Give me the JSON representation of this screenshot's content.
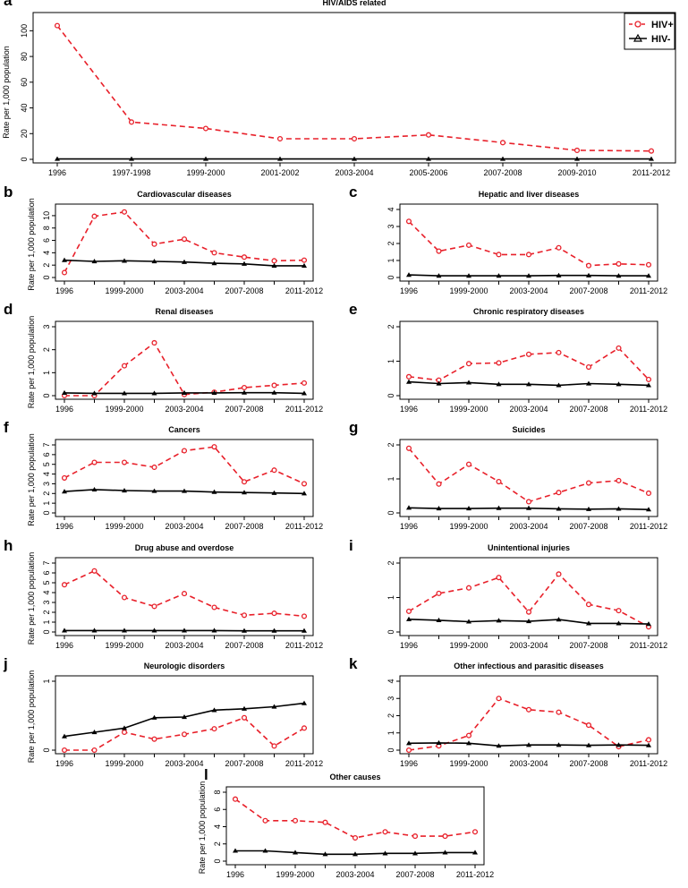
{
  "figure": {
    "ylabel_common": "Rate per 1,000 population",
    "legend": [
      {
        "name": "HIV+",
        "color": "#e8202a",
        "dash": "6,4",
        "marker": "circle"
      },
      {
        "name": "HIV-",
        "color": "#000000",
        "dash": "",
        "marker": "triangle"
      }
    ]
  },
  "chart_data": [
    {
      "panel": "a",
      "type": "line",
      "title": "HIV/AIDS related",
      "ylabel": "Rate per 1,000 population",
      "ylim": [
        0,
        110
      ],
      "yticks": [
        0,
        20,
        40,
        60,
        80,
        100
      ],
      "x": [
        0,
        1,
        2,
        3,
        4,
        5,
        6,
        7,
        8
      ],
      "xtick_labels": [
        "1996",
        "1997-1998",
        "1999-2000",
        "2001-2002",
        "2003-2004",
        "2005-2006",
        "2007-2008",
        "2009-2010",
        "2011-2012"
      ],
      "legend": "top-right",
      "series": [
        {
          "name": "HIV+",
          "values": [
            104,
            29,
            24,
            16,
            16,
            19,
            13,
            7,
            6.5
          ]
        },
        {
          "name": "HIV-",
          "values": [
            0.3,
            0.3,
            0.3,
            0.3,
            0.3,
            0.3,
            0.3,
            0.3,
            0.3
          ]
        }
      ]
    },
    {
      "panel": "b",
      "type": "line",
      "title": "Cardiovascular diseases",
      "ylabel": "Rate per 1,000 population",
      "ylim": [
        0,
        11
      ],
      "yticks": [
        0,
        2,
        4,
        6,
        8,
        10
      ],
      "x": [
        0,
        1,
        2,
        3,
        4,
        5,
        6,
        7,
        8
      ],
      "xtick_labels": [
        "1996",
        "",
        "1999-2000",
        "",
        "2003-2004",
        "",
        "2007-2008",
        "",
        "2011-2012"
      ],
      "series": [
        {
          "name": "HIV+",
          "values": [
            0.8,
            9.9,
            10.6,
            5.4,
            6.2,
            4.0,
            3.3,
            2.7,
            2.8
          ]
        },
        {
          "name": "HIV-",
          "values": [
            2.8,
            2.6,
            2.7,
            2.6,
            2.5,
            2.3,
            2.2,
            1.9,
            1.9
          ]
        }
      ]
    },
    {
      "panel": "c",
      "type": "line",
      "title": "Hepatic and liver diseases",
      "ylabel": "",
      "ylim": [
        0,
        4
      ],
      "yticks": [
        0,
        1,
        2,
        3,
        4
      ],
      "x": [
        0,
        1,
        2,
        3,
        4,
        5,
        6,
        7,
        8
      ],
      "xtick_labels": [
        "1996",
        "",
        "1999-2000",
        "",
        "2003-2004",
        "",
        "2007-2008",
        "",
        "2011-2012"
      ],
      "series": [
        {
          "name": "HIV+",
          "values": [
            3.3,
            1.55,
            1.9,
            1.35,
            1.35,
            1.75,
            0.7,
            0.8,
            0.75
          ]
        },
        {
          "name": "HIV-",
          "values": [
            0.15,
            0.1,
            0.1,
            0.1,
            0.1,
            0.12,
            0.12,
            0.1,
            0.1
          ]
        }
      ]
    },
    {
      "panel": "d",
      "type": "line",
      "title": "Renal diseases",
      "ylabel": "Rate per 1,000 population",
      "ylim": [
        0,
        3
      ],
      "yticks": [
        0,
        1,
        2,
        3
      ],
      "x": [
        0,
        1,
        2,
        3,
        4,
        5,
        6,
        7,
        8
      ],
      "xtick_labels": [
        "1996",
        "",
        "1999-2000",
        "",
        "2003-2004",
        "",
        "2007-2008",
        "",
        "2011-2012"
      ],
      "series": [
        {
          "name": "HIV+",
          "values": [
            0.0,
            0.0,
            1.3,
            2.3,
            0.05,
            0.15,
            0.35,
            0.45,
            0.55
          ]
        },
        {
          "name": "HIV-",
          "values": [
            0.12,
            0.1,
            0.1,
            0.1,
            0.12,
            0.12,
            0.13,
            0.13,
            0.1
          ]
        }
      ]
    },
    {
      "panel": "e",
      "type": "line",
      "title": "Chronic respiratory diseases",
      "ylabel": "",
      "ylim": [
        0,
        2
      ],
      "yticks": [
        0,
        1,
        2
      ],
      "x": [
        0,
        1,
        2,
        3,
        4,
        5,
        6,
        7,
        8
      ],
      "xtick_labels": [
        "1996",
        "",
        "1999-2000",
        "",
        "2003-2004",
        "",
        "2007-2008",
        "",
        "2011-2012"
      ],
      "series": [
        {
          "name": "HIV+",
          "values": [
            0.55,
            0.45,
            0.93,
            0.95,
            1.2,
            1.25,
            0.83,
            1.38,
            0.47
          ]
        },
        {
          "name": "HIV-",
          "values": [
            0.4,
            0.35,
            0.38,
            0.33,
            0.33,
            0.3,
            0.35,
            0.33,
            0.3
          ]
        }
      ]
    },
    {
      "panel": "f",
      "type": "line",
      "title": "Cancers",
      "ylabel": "Rate per 1,000 population",
      "ylim": [
        0,
        7
      ],
      "yticks": [
        0,
        1,
        2,
        3,
        4,
        5,
        6,
        7
      ],
      "x": [
        0,
        1,
        2,
        3,
        4,
        5,
        6,
        7,
        8
      ],
      "xtick_labels": [
        "1996",
        "",
        "1999-2000",
        "",
        "2003-2004",
        "",
        "2007-2008",
        "",
        "2011-2012"
      ],
      "series": [
        {
          "name": "HIV+",
          "values": [
            3.6,
            5.2,
            5.2,
            4.7,
            6.4,
            6.8,
            3.2,
            4.4,
            3.0
          ]
        },
        {
          "name": "HIV-",
          "values": [
            2.2,
            2.4,
            2.3,
            2.25,
            2.25,
            2.15,
            2.1,
            2.05,
            2.0
          ]
        }
      ]
    },
    {
      "panel": "g",
      "type": "line",
      "title": "Suicides",
      "ylabel": "",
      "ylim": [
        0,
        2
      ],
      "yticks": [
        0,
        1,
        2
      ],
      "x": [
        0,
        1,
        2,
        3,
        4,
        5,
        6,
        7,
        8
      ],
      "xtick_labels": [
        "1996",
        "",
        "1999-2000",
        "",
        "2003-2004",
        "",
        "2007-2008",
        "",
        "2011-2012"
      ],
      "series": [
        {
          "name": "HIV+",
          "values": [
            1.9,
            0.85,
            1.43,
            0.92,
            0.33,
            0.6,
            0.88,
            0.95,
            0.58
          ]
        },
        {
          "name": "HIV-",
          "values": [
            0.15,
            0.13,
            0.13,
            0.14,
            0.14,
            0.12,
            0.11,
            0.12,
            0.1
          ]
        }
      ]
    },
    {
      "panel": "h",
      "type": "line",
      "title": "Drug abuse and overdose",
      "ylabel": "Rate per 1,000 population",
      "ylim": [
        0,
        7
      ],
      "yticks": [
        0,
        1,
        2,
        3,
        4,
        5,
        6,
        7
      ],
      "x": [
        0,
        1,
        2,
        3,
        4,
        5,
        6,
        7,
        8
      ],
      "xtick_labels": [
        "1996",
        "",
        "1999-2000",
        "",
        "2003-2004",
        "",
        "2007-2008",
        "",
        "2011-2012"
      ],
      "series": [
        {
          "name": "HIV+",
          "values": [
            4.8,
            6.2,
            3.5,
            2.6,
            3.9,
            2.5,
            1.7,
            1.9,
            1.6
          ]
        },
        {
          "name": "HIV-",
          "values": [
            0.15,
            0.15,
            0.15,
            0.15,
            0.15,
            0.15,
            0.12,
            0.12,
            0.12
          ]
        }
      ]
    },
    {
      "panel": "i",
      "type": "line",
      "title": "Unintentional injuries",
      "ylabel": "",
      "ylim": [
        0,
        2
      ],
      "yticks": [
        0,
        1,
        2
      ],
      "x": [
        0,
        1,
        2,
        3,
        4,
        5,
        6,
        7,
        8
      ],
      "xtick_labels": [
        "1996",
        "",
        "1999-2000",
        "",
        "2003-2004",
        "",
        "2007-2008",
        "",
        "2011-2012"
      ],
      "series": [
        {
          "name": "HIV+",
          "values": [
            0.6,
            1.12,
            1.28,
            1.58,
            0.58,
            1.68,
            0.8,
            0.62,
            0.15
          ]
        },
        {
          "name": "HIV-",
          "values": [
            0.37,
            0.34,
            0.3,
            0.33,
            0.31,
            0.36,
            0.25,
            0.25,
            0.23
          ]
        }
      ]
    },
    {
      "panel": "j",
      "type": "line",
      "title": "Neurologic disorders",
      "ylabel": "Rate per 1,000 population",
      "ylim": [
        0,
        1
      ],
      "yticks": [
        0,
        1
      ],
      "x": [
        0,
        1,
        2,
        3,
        4,
        5,
        6,
        7,
        8
      ],
      "xtick_labels": [
        "1996",
        "",
        "1999-2000",
        "",
        "2003-2004",
        "",
        "2007-2008",
        "",
        "2011-2012"
      ],
      "series": [
        {
          "name": "HIV+",
          "values": [
            0.0,
            0.0,
            0.26,
            0.16,
            0.23,
            0.31,
            0.47,
            0.06,
            0.32
          ]
        },
        {
          "name": "HIV-",
          "values": [
            0.2,
            0.26,
            0.32,
            0.47,
            0.48,
            0.58,
            0.6,
            0.63,
            0.68
          ]
        }
      ]
    },
    {
      "panel": "k",
      "type": "line",
      "title": "Other infectious and parasitic diseases",
      "ylabel": "",
      "ylim": [
        0,
        4
      ],
      "yticks": [
        0,
        1,
        2,
        3,
        4
      ],
      "x": [
        0,
        1,
        2,
        3,
        4,
        5,
        6,
        7,
        8
      ],
      "xtick_labels": [
        "1996",
        "",
        "1999-2000",
        "",
        "2003-2004",
        "",
        "2007-2008",
        "",
        "2011-2012"
      ],
      "series": [
        {
          "name": "HIV+",
          "values": [
            0.0,
            0.25,
            0.85,
            3.0,
            2.35,
            2.2,
            1.45,
            0.2,
            0.6
          ]
        },
        {
          "name": "HIV-",
          "values": [
            0.4,
            0.42,
            0.4,
            0.25,
            0.3,
            0.3,
            0.28,
            0.3,
            0.28
          ]
        }
      ]
    },
    {
      "panel": "l",
      "type": "line",
      "title": "Other causes",
      "ylabel": "Rate per 1,000 population",
      "ylim": [
        0,
        8
      ],
      "yticks": [
        0,
        2,
        4,
        6,
        8
      ],
      "x": [
        0,
        1,
        2,
        3,
        4,
        5,
        6,
        7,
        8
      ],
      "xtick_labels": [
        "1996",
        "",
        "1999-2000",
        "",
        "2003-2004",
        "",
        "2007-2008",
        "",
        "2011-2012"
      ],
      "series": [
        {
          "name": "HIV+",
          "values": [
            7.2,
            4.7,
            4.7,
            4.5,
            2.7,
            3.4,
            2.9,
            2.9,
            3.4
          ]
        },
        {
          "name": "HIV-",
          "values": [
            1.2,
            1.2,
            1.0,
            0.8,
            0.8,
            0.9,
            0.9,
            1.0,
            1.0
          ]
        }
      ]
    }
  ]
}
